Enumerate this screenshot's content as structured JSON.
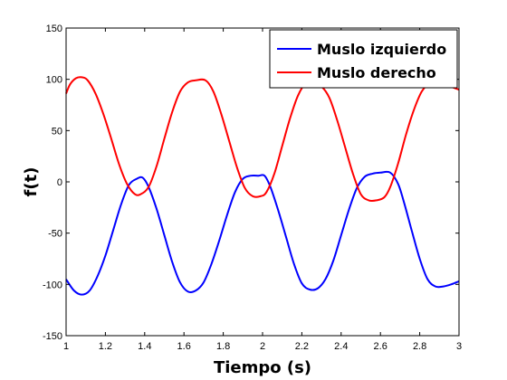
{
  "chart_data": {
    "type": "line",
    "xlabel": "Tiempo (s)",
    "ylabel": "f(t)",
    "xlim": [
      1,
      3
    ],
    "ylim": [
      -150,
      150
    ],
    "xticks": [
      1,
      1.2,
      1.4,
      1.6,
      1.8,
      2,
      2.2,
      2.4,
      2.6,
      2.8,
      3
    ],
    "xtick_labels": [
      "1",
      "1.2",
      "1.4",
      "1.6",
      "1.8",
      "2",
      "2.2",
      "2.4",
      "2.6",
      "2.8",
      "3"
    ],
    "yticks": [
      -150,
      -100,
      -50,
      0,
      50,
      100,
      150
    ],
    "ytick_labels": [
      "-150",
      "-100",
      "-50",
      "0",
      "50",
      "100",
      "150"
    ],
    "grid": false,
    "legend_position": "top-right",
    "series": [
      {
        "name": "Muslo izquierdo",
        "color": "#0000ff",
        "x": [
          1.0,
          1.04,
          1.08,
          1.12,
          1.16,
          1.2,
          1.24,
          1.28,
          1.32,
          1.36,
          1.39,
          1.42,
          1.46,
          1.5,
          1.54,
          1.58,
          1.62,
          1.66,
          1.7,
          1.74,
          1.78,
          1.82,
          1.86,
          1.9,
          1.94,
          1.98,
          2.01,
          2.04,
          2.08,
          2.12,
          2.16,
          2.2,
          2.24,
          2.28,
          2.32,
          2.36,
          2.4,
          2.44,
          2.48,
          2.52,
          2.56,
          2.6,
          2.65,
          2.69,
          2.72,
          2.76,
          2.8,
          2.84,
          2.88,
          2.92,
          2.96,
          3.0
        ],
        "y": [
          -95,
          -106,
          -110,
          -106,
          -92,
          -72,
          -47,
          -22,
          -3,
          3,
          4,
          -5,
          -26,
          -52,
          -78,
          -98,
          -107,
          -106,
          -98,
          -80,
          -57,
          -32,
          -10,
          3,
          6,
          6,
          6,
          -5,
          -28,
          -54,
          -80,
          -99,
          -105,
          -104,
          -95,
          -77,
          -52,
          -27,
          -6,
          5,
          8,
          9,
          9,
          -2,
          -20,
          -48,
          -75,
          -95,
          -102,
          -102,
          -100,
          -97
        ]
      },
      {
        "name": "Muslo derecho",
        "color": "#ff0000",
        "x": [
          1.0,
          1.02,
          1.05,
          1.08,
          1.11,
          1.15,
          1.19,
          1.23,
          1.27,
          1.31,
          1.35,
          1.38,
          1.42,
          1.46,
          1.5,
          1.54,
          1.58,
          1.62,
          1.66,
          1.71,
          1.75,
          1.79,
          1.83,
          1.87,
          1.91,
          1.95,
          1.99,
          2.02,
          2.06,
          2.1,
          2.14,
          2.18,
          2.22,
          2.26,
          2.3,
          2.34,
          2.38,
          2.42,
          2.46,
          2.5,
          2.54,
          2.58,
          2.62,
          2.65,
          2.69,
          2.73,
          2.77,
          2.81,
          2.85,
          2.89,
          2.93,
          2.97,
          3.0
        ],
        "y": [
          86,
          95,
          101,
          102,
          99,
          86,
          66,
          42,
          17,
          -2,
          -12,
          -12,
          -5,
          15,
          42,
          68,
          88,
          97,
          99,
          99,
          88,
          66,
          40,
          14,
          -6,
          -14,
          -14,
          -10,
          8,
          35,
          62,
          84,
          96,
          96,
          93,
          82,
          60,
          34,
          8,
          -12,
          -18,
          -18,
          -15,
          -5,
          18,
          46,
          70,
          88,
          96,
          98,
          96,
          92,
          90
        ]
      }
    ]
  }
}
